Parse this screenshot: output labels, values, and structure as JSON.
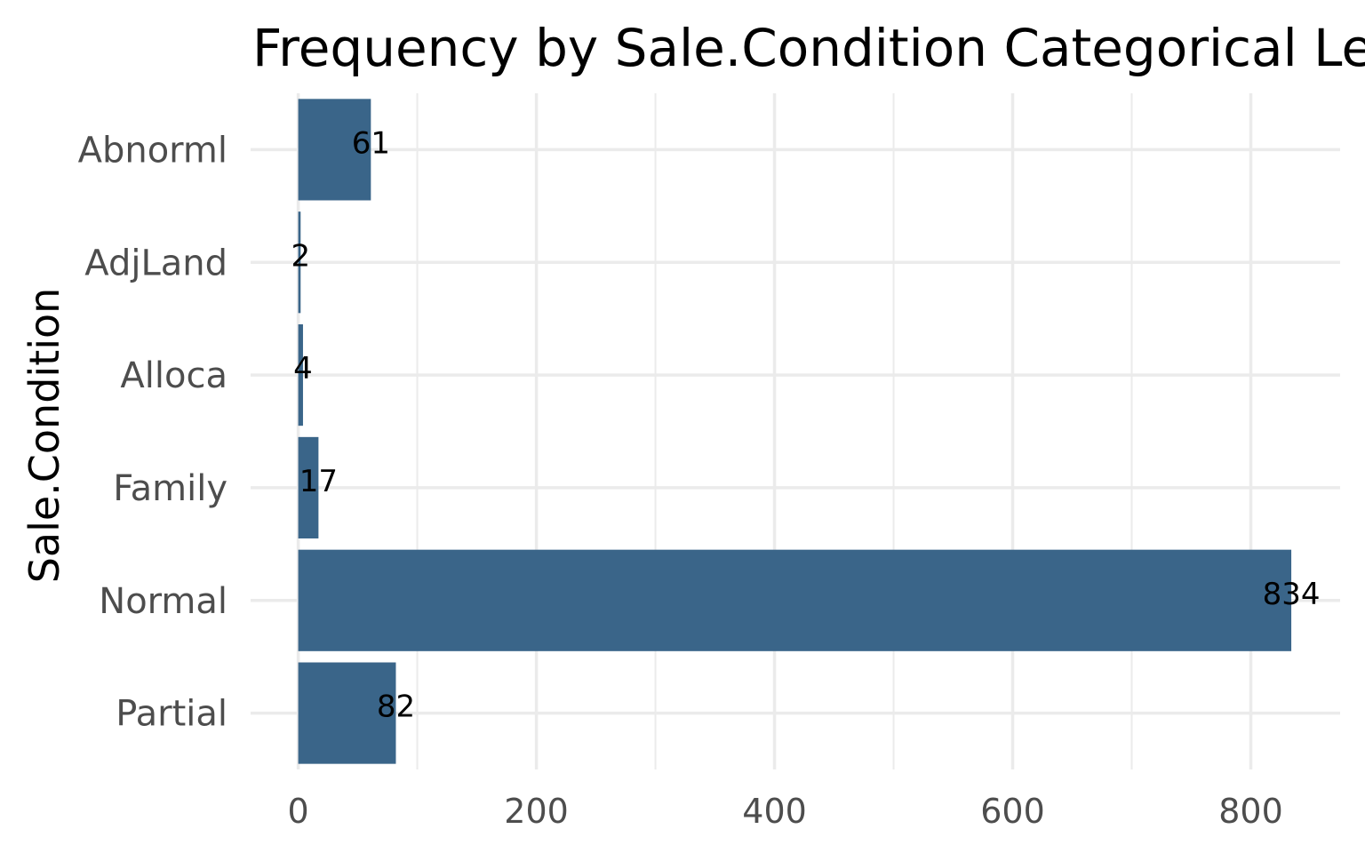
{
  "chart_data": {
    "type": "bar",
    "orientation": "horizontal",
    "title": "Frequency by Sale.Condition Categorical Le",
    "xlabel": "",
    "ylabel": "Sale.Condition",
    "categories": [
      "Abnorml",
      "AdjLand",
      "Alloca",
      "Family",
      "Normal",
      "Partial"
    ],
    "values": [
      61,
      2,
      4,
      17,
      834,
      82
    ],
    "data_labels": [
      "61",
      "2",
      "4",
      "17",
      "834",
      "82"
    ],
    "xlim": [
      -40,
      875
    ],
    "x_ticks": [
      0,
      200,
      400,
      600,
      800
    ],
    "x_tick_labels": [
      "0",
      "200",
      "400",
      "600",
      "800"
    ],
    "x_minor_ticks": [
      100,
      300,
      500,
      700
    ],
    "grid": true,
    "legend": "none",
    "colors": {
      "bar": "#3a6589",
      "grid": "#ebebeb",
      "axis_text": "#4d4d4d",
      "text": "#000000"
    }
  }
}
